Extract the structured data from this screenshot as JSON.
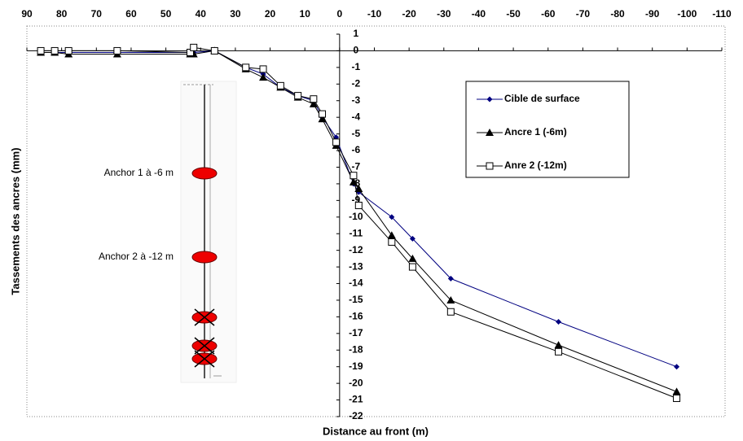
{
  "chart_data": {
    "type": "line",
    "x_label": "Distance au front (m)",
    "y_label": "Tassements des ancres (mm)",
    "annotations": [
      "Anchor 1 à -6 m",
      "Anchor 2 à -12 m"
    ],
    "x": [
      86,
      82,
      78,
      64,
      43,
      42,
      36,
      27,
      22,
      17,
      12,
      7.5,
      5,
      1,
      -4,
      -5.5,
      -15,
      -21,
      -32,
      -63,
      -97
    ],
    "series": [
      {
        "name": "Cible de surface",
        "color": "#000080",
        "marker": "diamond",
        "values": [
          -0.1,
          -0.1,
          -0.1,
          -0.1,
          -0.1,
          -0.1,
          0,
          -1,
          -1.4,
          -2.2,
          -2.7,
          -3,
          -4,
          -5.2,
          -8,
          -8.5,
          -10,
          -11.3,
          -13.7,
          -16.3,
          -19
        ]
      },
      {
        "name": "Ancre 1 (-6m)",
        "color": "#000000",
        "marker": "triangle",
        "values": [
          -0.1,
          -0.1,
          -0.2,
          -0.2,
          -0.2,
          -0.2,
          0,
          -1.1,
          -1.6,
          -2.2,
          -2.8,
          -3.2,
          -4.1,
          -5.7,
          -7.9,
          -8.3,
          -11.1,
          -12.5,
          -15,
          -17.7,
          -20.5
        ]
      },
      {
        "name": "Anre 2 (-12m)",
        "color": "#000000",
        "marker": "square",
        "values": [
          0,
          0,
          0,
          0,
          -0.1,
          0.2,
          0,
          -1,
          -1.1,
          -2.1,
          -2.7,
          -2.9,
          -3.8,
          -5.5,
          -7.5,
          -9.3,
          -11.5,
          -13,
          -15.7,
          -18.1,
          -20.9
        ]
      }
    ],
    "xlim": [
      90,
      -110
    ],
    "xticks": [
      90,
      80,
      70,
      60,
      50,
      40,
      30,
      20,
      10,
      0,
      -10,
      -20,
      -30,
      -40,
      -50,
      -60,
      -70,
      -80,
      -90,
      -100,
      -110
    ],
    "ylim": [
      -22,
      1
    ],
    "yticks": [
      1,
      0,
      -1,
      -2,
      -3,
      -4,
      -5,
      -6,
      -7,
      -8,
      -9,
      -10,
      -11,
      -12,
      -13,
      -14,
      -15,
      -16,
      -17,
      -18,
      -19,
      -20,
      -21,
      -22
    ]
  }
}
